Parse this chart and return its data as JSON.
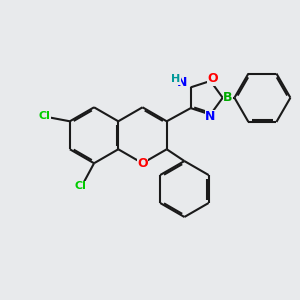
{
  "bg_color": "#e8eaec",
  "bond_color": "#1a1a1a",
  "bond_width": 1.5,
  "dbo": 0.055,
  "atom_colors": {
    "N": "#0000ff",
    "O": "#ff0000",
    "B": "#00aa00",
    "Cl": "#00cc00",
    "H": "#009999"
  },
  "figsize": [
    3.0,
    3.0
  ],
  "dpi": 100
}
